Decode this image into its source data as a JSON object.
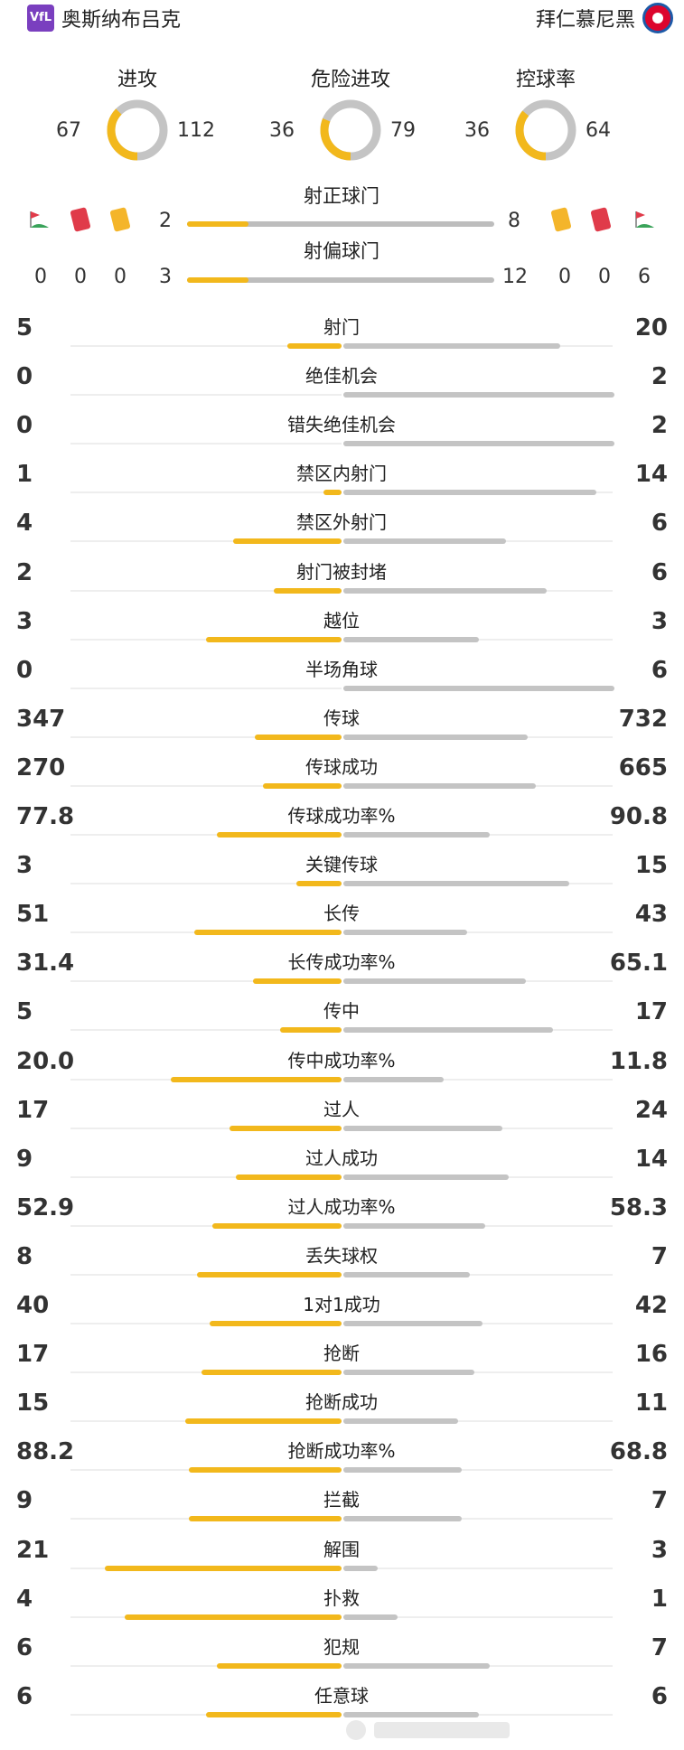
{
  "header": {
    "home_team": "奥斯纳布吕克",
    "away_team": "拜仁慕尼黑",
    "home_logo_text": "VfL"
  },
  "rings": [
    {
      "label": "进攻",
      "home": "67",
      "away": "112",
      "home_share": 0.374
    },
    {
      "label": "危险进攻",
      "home": "36",
      "away": "79",
      "home_share": 0.313
    },
    {
      "label": "控球率",
      "home": "36",
      "away": "64",
      "home_share": 0.36
    }
  ],
  "shots_on": {
    "label": "射正球门",
    "home": "2",
    "away": "8",
    "home_share": 0.2
  },
  "shots_off": {
    "label": "射偏球门",
    "home": "3",
    "away": "12",
    "home_share": 0.2
  },
  "discipline": {
    "home": {
      "corners": "0",
      "red": "0",
      "yellow": "0"
    },
    "away": {
      "yellow": "0",
      "red": "0",
      "corners": "6"
    }
  },
  "stats": [
    {
      "label": "射门",
      "home": "5",
      "away": "20",
      "h": 5,
      "a": 20
    },
    {
      "label": "绝佳机会",
      "home": "0",
      "away": "2",
      "h": 0,
      "a": 2
    },
    {
      "label": "错失绝佳机会",
      "home": "0",
      "away": "2",
      "h": 0,
      "a": 2
    },
    {
      "label": "禁区内射门",
      "home": "1",
      "away": "14",
      "h": 1,
      "a": 14
    },
    {
      "label": "禁区外射门",
      "home": "4",
      "away": "6",
      "h": 4,
      "a": 6
    },
    {
      "label": "射门被封堵",
      "home": "2",
      "away": "6",
      "h": 2,
      "a": 6
    },
    {
      "label": "越位",
      "home": "3",
      "away": "3",
      "h": 3,
      "a": 3
    },
    {
      "label": "半场角球",
      "home": "0",
      "away": "6",
      "h": 0,
      "a": 6
    },
    {
      "label": "传球",
      "home": "347",
      "away": "732",
      "h": 347,
      "a": 732
    },
    {
      "label": "传球成功",
      "home": "270",
      "away": "665",
      "h": 270,
      "a": 665
    },
    {
      "label": "传球成功率%",
      "home": "77.8",
      "away": "90.8",
      "h": 77.8,
      "a": 90.8
    },
    {
      "label": "关键传球",
      "home": "3",
      "away": "15",
      "h": 3,
      "a": 15
    },
    {
      "label": "长传",
      "home": "51",
      "away": "43",
      "h": 51,
      "a": 43
    },
    {
      "label": "长传成功率%",
      "home": "31.4",
      "away": "65.1",
      "h": 31.4,
      "a": 65.1
    },
    {
      "label": "传中",
      "home": "5",
      "away": "17",
      "h": 5,
      "a": 17
    },
    {
      "label": "传中成功率%",
      "home": "20.0",
      "away": "11.8",
      "h": 20.0,
      "a": 11.8
    },
    {
      "label": "过人",
      "home": "17",
      "away": "24",
      "h": 17,
      "a": 24
    },
    {
      "label": "过人成功",
      "home": "9",
      "away": "14",
      "h": 9,
      "a": 14
    },
    {
      "label": "过人成功率%",
      "home": "52.9",
      "away": "58.3",
      "h": 52.9,
      "a": 58.3
    },
    {
      "label": "丢失球权",
      "home": "8",
      "away": "7",
      "h": 8,
      "a": 7
    },
    {
      "label": "1对1成功",
      "home": "40",
      "away": "42",
      "h": 40,
      "a": 42
    },
    {
      "label": "抢断",
      "home": "17",
      "away": "16",
      "h": 17,
      "a": 16
    },
    {
      "label": "抢断成功",
      "home": "15",
      "away": "11",
      "h": 15,
      "a": 11
    },
    {
      "label": "抢断成功率%",
      "home": "88.2",
      "away": "68.8",
      "h": 88.2,
      "a": 68.8
    },
    {
      "label": "拦截",
      "home": "9",
      "away": "7",
      "h": 9,
      "a": 7
    },
    {
      "label": "解围",
      "home": "21",
      "away": "3",
      "h": 21,
      "a": 3
    },
    {
      "label": "扑救",
      "home": "4",
      "away": "1",
      "h": 4,
      "a": 1
    },
    {
      "label": "犯规",
      "home": "6",
      "away": "7",
      "h": 6,
      "a": 7
    },
    {
      "label": "任意球",
      "home": "6",
      "away": "6",
      "h": 6,
      "a": 6
    }
  ],
  "colors": {
    "home": "#f2b81c",
    "away": "#c4c4c4",
    "track": "#eeeeee"
  }
}
